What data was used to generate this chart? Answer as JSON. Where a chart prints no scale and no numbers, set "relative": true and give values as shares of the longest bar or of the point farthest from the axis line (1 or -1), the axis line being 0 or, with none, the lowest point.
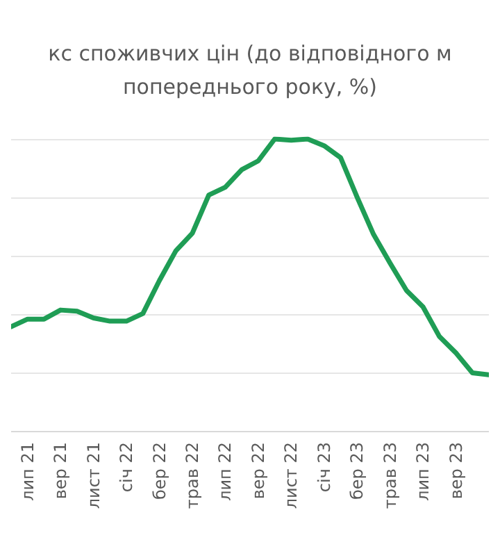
{
  "chart_data": {
    "type": "line",
    "title": "кс споживчих цін (до відповідного м",
    "subtitle": "попереднього року, %)",
    "categories": [
      null,
      "лип 21",
      null,
      "вер 21",
      null,
      "лист 21",
      null,
      "січ 22",
      null,
      "бер 22",
      null,
      "трав 22",
      null,
      "лип 22",
      null,
      "вер 22",
      null,
      "лист 22",
      null,
      "січ 23",
      null,
      "бер 23",
      null,
      "трав 23",
      null,
      "лип 23",
      null,
      "вер 23",
      null,
      null
    ],
    "series": [
      {
        "color": "#1f9d55",
        "values": [
          0.357,
          0.383,
          0.383,
          0.414,
          0.41,
          0.387,
          0.376,
          0.376,
          0.402,
          0.515,
          0.617,
          0.677,
          0.808,
          0.835,
          0.895,
          0.925,
          1,
          0.996,
          1,
          0.977,
          0.936,
          0.801,
          0.673,
          0.575,
          0.481,
          0.425,
          0.323,
          0.267,
          0.199,
          0.192
        ]
      }
    ],
    "relative": true,
    "grid": "y",
    "marker": "none",
    "line_style": "solid"
  }
}
